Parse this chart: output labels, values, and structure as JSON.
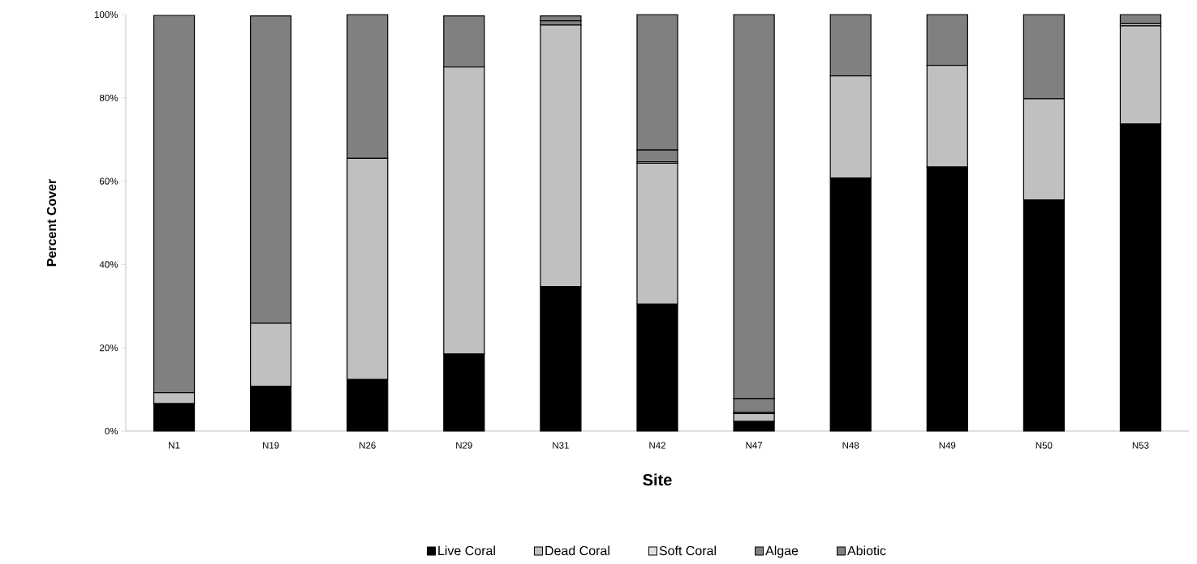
{
  "chart_data": {
    "type": "bar",
    "stacked": true,
    "xlabel": "Site",
    "ylabel": "Percent Cover",
    "categories": [
      "N1",
      "N19",
      "N26",
      "N29",
      "N31",
      "N42",
      "N47",
      "N48",
      "N49",
      "N50",
      "N53"
    ],
    "series": [
      {
        "name": "Live Coral",
        "color": "#000000",
        "values": [
          6.6,
          10.8,
          12.4,
          18.5,
          34.7,
          30.5,
          2.3,
          60.8,
          63.4,
          55.5,
          73.7
        ]
      },
      {
        "name": "Dead Coral",
        "color": "#c0c0c0",
        "values": [
          2.6,
          15.1,
          53.1,
          68.9,
          62.8,
          33.8,
          1.9,
          24.5,
          24.4,
          24.3,
          23.6
        ]
      },
      {
        "name": "Soft Coral",
        "color": "#e0e0e0",
        "values": [
          null,
          null,
          0,
          null,
          null,
          0.3,
          0.3,
          0,
          0,
          0,
          0.5
        ]
      },
      {
        "name": "Algae",
        "color": "#808080",
        "values": [
          0,
          0,
          0,
          0,
          1.0,
          2.9,
          3.3,
          0,
          0,
          0,
          0
        ]
      },
      {
        "name": "Abiotic",
        "color": "#808080",
        "values": [
          90.6,
          73.8,
          34.5,
          12.3,
          1.2,
          32.5,
          92.2,
          14.7,
          12.2,
          20.2,
          2.2
        ]
      }
    ],
    "ylim": [
      0,
      100
    ],
    "yticks": [
      {
        "value": 0,
        "label": "0%"
      },
      {
        "value": 20,
        "label": "20%"
      },
      {
        "value": 40,
        "label": "40%"
      },
      {
        "value": 60,
        "label": "60%"
      },
      {
        "value": 80,
        "label": "80%"
      },
      {
        "value": 100,
        "label": "100%"
      }
    ],
    "legend": "bottom"
  }
}
